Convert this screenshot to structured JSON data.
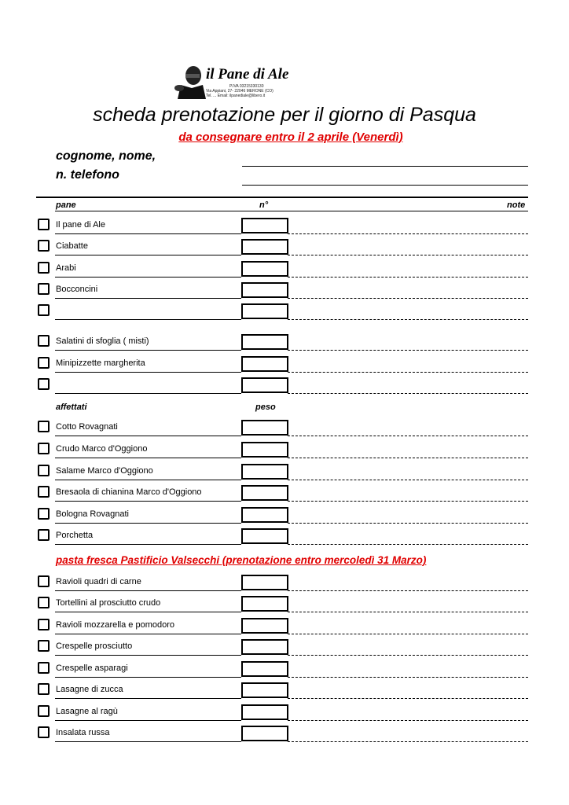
{
  "logo": {
    "name": "il Pane di Ale",
    "piva": "P.IVA 03215330130",
    "address": "Via Appiani, 27- 22046 MERONE (CO)",
    "contact": "Tel. ... Email: ilpanediale@libero.it"
  },
  "title": "scheda  prenotazione per il giorno di Pasqua",
  "deadline": "da consegnare entro il 2 aprile (Venerdì)",
  "customer": {
    "name_label": "cognome, nome,",
    "phone_label": "n. telefono"
  },
  "columns": {
    "item": "pane",
    "qty": "n°",
    "notes": "note",
    "weight": "peso"
  },
  "sections": {
    "affettati": "affettati",
    "pasta": "pasta fresca Pastificio Valsecchi (prenotazione entro mercoledì 31 Marzo)"
  },
  "items": [
    "Il pane di Ale",
    "Ciabatte",
    "Arabi",
    "Bocconcini",
    "",
    "Salatini di sfoglia ( misti)",
    "Minipizzette margherita",
    "",
    "Cotto Rovagnati",
    "Crudo Marco d'Oggiono",
    "Salame Marco d'Oggiono",
    "Bresaola di chianina Marco d'Oggiono",
    "Bologna Rovagnati",
    "Porchetta",
    "Ravioli quadri di carne",
    "Tortellini al prosciutto crudo",
    "Ravioli mozzarella e pomodoro",
    "Crespelle prosciutto",
    "Crespelle asparagi",
    "Lasagne di zucca",
    "Lasagne al ragù",
    "Insalata russa"
  ],
  "colors": {
    "accent_red": "#e00000"
  }
}
